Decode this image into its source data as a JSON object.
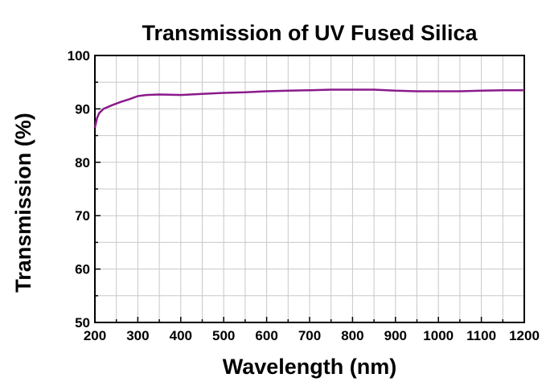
{
  "chart_data": {
    "type": "line",
    "title": "Transmission of UV Fused Silica",
    "xlabel": "Wavelength (nm)",
    "ylabel": "Transmission (%)",
    "xlim": [
      200,
      1200
    ],
    "ylim": [
      50,
      100
    ],
    "xticks": [
      200,
      300,
      400,
      500,
      600,
      700,
      800,
      900,
      1000,
      1100,
      1200
    ],
    "yticks": [
      50,
      60,
      70,
      80,
      90,
      100
    ],
    "grid": true,
    "line_color": "#8b1a8b",
    "series": [
      {
        "name": "UV Fused Silica",
        "x": [
          200,
          205,
          210,
          220,
          240,
          260,
          280,
          300,
          320,
          350,
          400,
          450,
          500,
          550,
          600,
          650,
          700,
          750,
          800,
          850,
          900,
          950,
          1000,
          1050,
          1100,
          1150,
          1200
        ],
        "y": [
          86.5,
          88.3,
          89.2,
          90.0,
          90.7,
          91.3,
          91.8,
          92.4,
          92.6,
          92.7,
          92.6,
          92.8,
          93.0,
          93.1,
          93.3,
          93.4,
          93.5,
          93.6,
          93.6,
          93.6,
          93.4,
          93.3,
          93.3,
          93.3,
          93.4,
          93.5,
          93.5
        ]
      }
    ]
  }
}
